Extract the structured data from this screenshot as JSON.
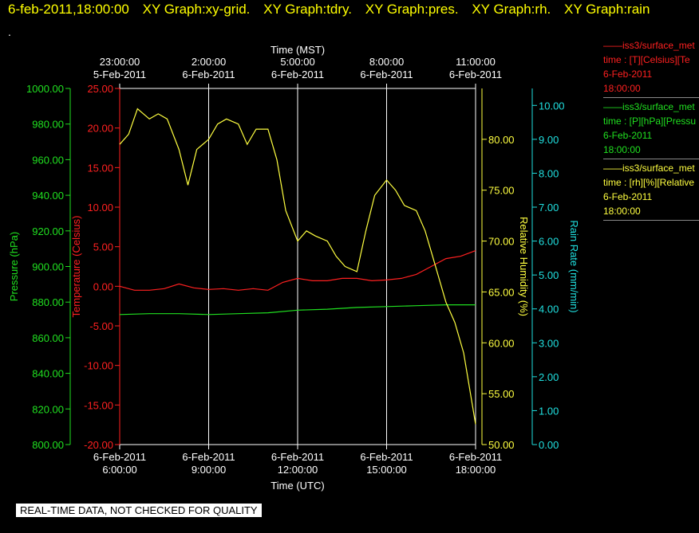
{
  "header": {
    "timestamp": "6-feb-2011,18:00:00",
    "tabs": [
      "XY Graph:xy-grid.",
      "XY Graph:tdry.",
      "XY Graph:pres.",
      "XY Graph:rh.",
      "XY Graph:rain"
    ]
  },
  "dot": ".",
  "note": "REAL-TIME DATA, NOT CHECKED FOR QUALITY",
  "legend": [
    {
      "line1": "——iss3/surface_met",
      "line2": "time : [T][Celsius][Te",
      "date": "6-Feb-2011",
      "time": "18:00:00",
      "color": "#ff2020"
    },
    {
      "line1": "——iss3/surface_met",
      "line2": "time : [P][hPa][Pressu",
      "date": "6-Feb-2011",
      "time": "18:00:00",
      "color": "#20e020"
    },
    {
      "line1": "——iss3/surface_met",
      "line2": "time : [rh][%][Relative",
      "date": "6-Feb-2011",
      "time": "18:00:00",
      "color": "#ffff40"
    }
  ],
  "chart_data": {
    "type": "line",
    "top_axis": {
      "label": "Time (MST)",
      "ticks": [
        {
          "time": "23:00:00",
          "date": "5-Feb-2011"
        },
        {
          "time": "2:00:00",
          "date": "6-Feb-2011"
        },
        {
          "time": "5:00:00",
          "date": "6-Feb-2011"
        },
        {
          "time": "8:00:00",
          "date": "6-Feb-2011"
        },
        {
          "time": "11:00:00",
          "date": "6-Feb-2011"
        }
      ]
    },
    "bottom_axis": {
      "label": "Time (UTC)",
      "ticks": [
        {
          "date": "6-Feb-2011",
          "time": "6:00:00"
        },
        {
          "date": "6-Feb-2011",
          "time": "9:00:00"
        },
        {
          "date": "6-Feb-2011",
          "time": "12:00:00"
        },
        {
          "date": "6-Feb-2011",
          "time": "15:00:00"
        },
        {
          "date": "6-Feb-2011",
          "time": "18:00:00"
        }
      ],
      "range_hours_utc": [
        6,
        18
      ]
    },
    "axes": [
      {
        "id": "pres",
        "label": "Pressure (hPa)",
        "color": "#20e020",
        "range": [
          800,
          1000
        ],
        "ticks": [
          "800.00",
          "820.00",
          "840.00",
          "860.00",
          "880.00",
          "900.00",
          "920.00",
          "940.00",
          "960.00",
          "980.00",
          "1000.00"
        ]
      },
      {
        "id": "temp",
        "label": "Temperature (Celsius)",
        "color": "#ff2020",
        "range": [
          -20,
          25
        ],
        "ticks": [
          "-20.00",
          "-15.00",
          "-10.00",
          "-5.00",
          "0.00",
          "5.00",
          "10.00",
          "15.00",
          "20.00",
          "25.00"
        ]
      },
      {
        "id": "rh",
        "label": "Relative Humidity (%)",
        "color": "#ffff40",
        "range": [
          50,
          85
        ],
        "ticks": [
          "50.00",
          "55.00",
          "60.00",
          "65.00",
          "70.00",
          "75.00",
          "80.00"
        ]
      },
      {
        "id": "rain",
        "label": "Rain Rate (mm/min)",
        "color": "#20e0e0",
        "range": [
          0,
          10.5
        ],
        "ticks": [
          "0.00",
          "1.00",
          "2.00",
          "3.00",
          "4.00",
          "5.00",
          "6.00",
          "7.00",
          "8.00",
          "9.00",
          "10.00"
        ]
      }
    ],
    "grid_x": true,
    "series": [
      {
        "axis": "temp",
        "color": "#ff2020",
        "x": [
          6,
          6.5,
          7,
          7.5,
          8,
          8.5,
          9,
          9.5,
          10,
          10.5,
          11,
          11.5,
          12,
          12.5,
          13,
          13.5,
          14,
          14.5,
          15,
          15.5,
          16,
          16.5,
          17,
          17.5,
          18
        ],
        "y": [
          0,
          -0.5,
          -0.5,
          -0.3,
          0.3,
          -0.2,
          -0.4,
          -0.3,
          -0.5,
          -0.3,
          -0.5,
          0.5,
          1,
          0.7,
          0.7,
          1,
          1,
          0.7,
          0.8,
          1,
          1.5,
          2.5,
          3.5,
          3.8,
          4.5
        ]
      },
      {
        "axis": "pres",
        "color": "#20e020",
        "x": [
          6,
          7,
          8,
          9,
          10,
          11,
          12,
          13,
          14,
          15,
          16,
          17,
          18
        ],
        "y": [
          873,
          873.5,
          873.5,
          873,
          873.5,
          874,
          875.5,
          876,
          877,
          877.5,
          878,
          878.5,
          878.5
        ]
      },
      {
        "axis": "rh",
        "color": "#ffff40",
        "x": [
          6,
          6.3,
          6.6,
          7,
          7.3,
          7.6,
          8,
          8.3,
          8.6,
          9,
          9.3,
          9.6,
          10,
          10.3,
          10.6,
          11,
          11.3,
          11.6,
          12,
          12.3,
          12.6,
          13,
          13.3,
          13.6,
          14,
          14.3,
          14.6,
          15,
          15.3,
          15.6,
          16,
          16.3,
          16.6,
          17,
          17.3,
          17.6,
          18
        ],
        "y": [
          79.5,
          80.5,
          83,
          82,
          82.5,
          82,
          79,
          75.5,
          79,
          80,
          81.5,
          82,
          81.5,
          79.5,
          81,
          81,
          78,
          73,
          70,
          71,
          70.5,
          70,
          68.5,
          67.5,
          67,
          71,
          74.5,
          76,
          75,
          73.5,
          73,
          71,
          68,
          64,
          62,
          59,
          52
        ]
      }
    ]
  }
}
